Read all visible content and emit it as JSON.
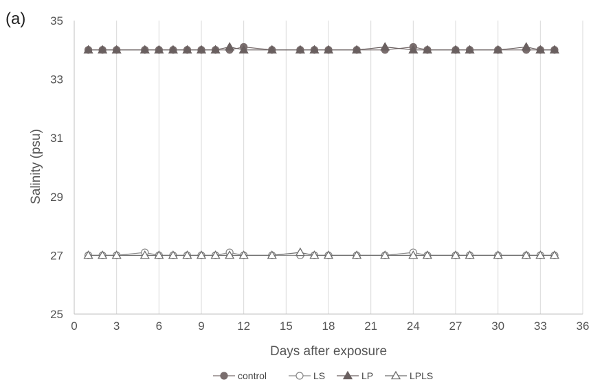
{
  "panel_label": "(a)",
  "chart_data": {
    "type": "line",
    "title": "",
    "xlabel": "Days after exposure",
    "ylabel": "Salinity (psu)",
    "xlim": [
      0,
      36
    ],
    "ylim": [
      25,
      35
    ],
    "xticks": [
      0,
      3,
      6,
      9,
      12,
      15,
      18,
      21,
      24,
      27,
      30,
      33,
      36
    ],
    "yticks": [
      25,
      27,
      29,
      31,
      33,
      35
    ],
    "grid": "vertical",
    "legend_position": "bottom",
    "series": [
      {
        "name": "control",
        "marker": "circle-filled",
        "color": "#7a6e6e",
        "x": [
          1,
          2,
          3,
          5,
          6,
          7,
          8,
          9,
          10,
          11,
          12,
          14,
          16,
          17,
          18,
          20,
          22,
          24,
          25,
          27,
          28,
          30,
          32,
          33,
          34
        ],
        "y": [
          34,
          34,
          34,
          34,
          34,
          34,
          34,
          34,
          34,
          34,
          34.1,
          34,
          34,
          34,
          34,
          34,
          34,
          34.1,
          34,
          34,
          34,
          34,
          34,
          34,
          34
        ]
      },
      {
        "name": "LS",
        "marker": "circle-open",
        "color": "#8a8a8a",
        "x": [
          1,
          2,
          3,
          5,
          6,
          7,
          8,
          9,
          10,
          11,
          12,
          14,
          16,
          17,
          18,
          20,
          22,
          24,
          25,
          27,
          28,
          30,
          32,
          33,
          34
        ],
        "y": [
          27,
          27,
          27,
          27.1,
          27,
          27,
          27,
          27,
          27,
          27.1,
          27,
          27,
          27,
          27,
          27,
          27,
          27,
          27.1,
          27,
          27,
          27,
          27,
          27,
          27,
          27
        ]
      },
      {
        "name": "LP",
        "marker": "triangle-filled",
        "color": "#6a6060",
        "x": [
          1,
          2,
          3,
          5,
          6,
          7,
          8,
          9,
          10,
          11,
          12,
          14,
          16,
          17,
          18,
          20,
          22,
          24,
          25,
          27,
          28,
          30,
          32,
          33,
          34
        ],
        "y": [
          34,
          34,
          34,
          34,
          34,
          34,
          34,
          34,
          34,
          34.1,
          34,
          34,
          34,
          34,
          34,
          34,
          34.1,
          34,
          34,
          34,
          34,
          34,
          34.1,
          34,
          34
        ]
      },
      {
        "name": "LPLS",
        "marker": "triangle-open",
        "color": "#6e6e6e",
        "x": [
          1,
          2,
          3,
          5,
          6,
          7,
          8,
          9,
          10,
          11,
          12,
          14,
          16,
          17,
          18,
          20,
          22,
          24,
          25,
          27,
          28,
          30,
          32,
          33,
          34
        ],
        "y": [
          27,
          27,
          27,
          27,
          27,
          27,
          27,
          27,
          27,
          27,
          27,
          27,
          27.1,
          27,
          27,
          27,
          27,
          27,
          27,
          27,
          27,
          27,
          27,
          27,
          27
        ]
      }
    ]
  }
}
